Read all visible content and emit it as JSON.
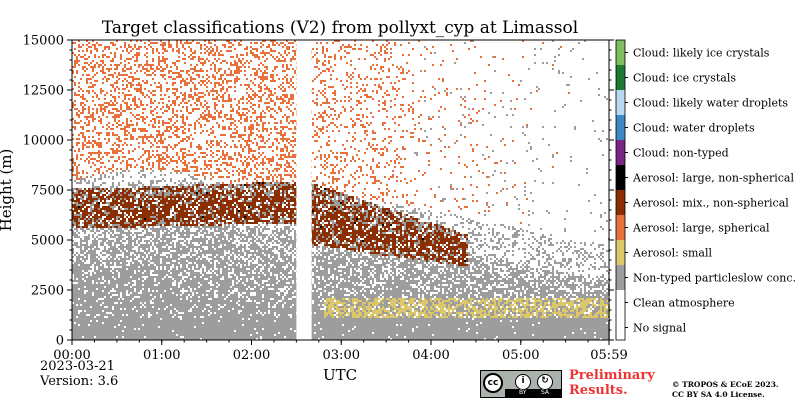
{
  "chart_data": {
    "type": "heatmap",
    "title": "Target classifications (V2) from pollyxt_cyp at Limassol",
    "xlabel": "UTC",
    "ylabel": "Height (m)",
    "x_ticks": [
      "00:00",
      "01:00",
      "02:00",
      "03:00",
      "04:00",
      "05:00",
      "05:59"
    ],
    "x_range_hours": [
      0,
      5.983
    ],
    "ylim": [
      0,
      15000
    ],
    "y_ticks": [
      0,
      2500,
      5000,
      7500,
      10000,
      12500,
      15000
    ],
    "y_tick_labels": [
      "0",
      "2500",
      "5000",
      "7500",
      "10000",
      "12500",
      "15000"
    ],
    "data_gap_utc": [
      "02:30",
      "02:40"
    ],
    "classes": [
      {
        "label": "Cloud: likely ice crystals",
        "color": "#7fbf5f"
      },
      {
        "label": "Cloud: ice crystals",
        "color": "#1e7a33"
      },
      {
        "label": "Cloud: likely water droplets",
        "color": "#b9d9f2"
      },
      {
        "label": "Cloud: water droplets",
        "color": "#3f88c8"
      },
      {
        "label": "Cloud: non-typed",
        "color": "#7a2582"
      },
      {
        "label": "Aerosol: large, non-spherical",
        "color": "#000000"
      },
      {
        "label": "Aerosol: mix., non-spherical",
        "color": "#8b2e02"
      },
      {
        "label": "Aerosol: large, spherical",
        "color": "#e8703a"
      },
      {
        "label": "Aerosol: small",
        "color": "#dcc86a"
      },
      {
        "label": "Non-typed particleslow conc.",
        "color": "#9d9d9d"
      },
      {
        "label": "Clean atmosphere",
        "color": "#ffffff"
      },
      {
        "label": "No signal",
        "color": "#ffffff"
      }
    ],
    "layers": [
      {
        "class": "Non-typed particleslow conc.",
        "height_m": [
          0,
          6500
        ],
        "time_h": [
          0,
          5.983
        ]
      },
      {
        "class": "Aerosol: mix., non-spherical",
        "height_m": [
          5500,
          8000
        ],
        "time_h": [
          0,
          4.4
        ]
      },
      {
        "class": "Aerosol: large, spherical",
        "height_m": [
          8000,
          15000
        ],
        "time_h": [
          0,
          3.8
        ]
      },
      {
        "class": "Aerosol: small",
        "height_m": [
          1200,
          2200
        ],
        "time_h": [
          2.8,
          5.983
        ]
      }
    ]
  },
  "footer": {
    "date": "2023-03-21",
    "version": "Version: 3.6",
    "preliminary_line1": "Preliminary",
    "preliminary_line2": "Results.",
    "copyright_line1": "© TROPOS & ECoE 2023.",
    "copyright_line2": "CC BY SA 4.0 License.",
    "cc_badge": "cc",
    "cc_by": "BY",
    "cc_sa": "SA"
  }
}
